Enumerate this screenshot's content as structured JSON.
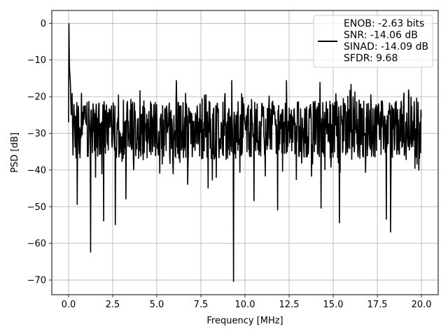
{
  "chart_data": {
    "type": "line",
    "title": "",
    "xlabel": "Frequency [MHz]",
    "ylabel": "PSD [dB]",
    "xlim": [
      -0.95,
      20.95
    ],
    "ylim": [
      -74,
      3.5
    ],
    "xticks": [
      0.0,
      2.5,
      5.0,
      7.5,
      10.0,
      12.5,
      15.0,
      17.5,
      20.0
    ],
    "xtick_labels": [
      "0.0",
      "2.5",
      "5.0",
      "7.5",
      "10.0",
      "12.5",
      "15.0",
      "17.5",
      "20.0"
    ],
    "yticks": [
      0,
      -10,
      -20,
      -30,
      -40,
      -50,
      -60,
      -70
    ],
    "ytick_labels": [
      "0",
      "−10",
      "−20",
      "−30",
      "−40",
      "−50",
      "−60",
      "−70"
    ],
    "grid": true,
    "legend_position": "top-right",
    "series_color": "#000000",
    "legend_entries": [
      "ENOB: -2.63 bits",
      "SNR: -14.06 dB",
      "SINAD: -14.09 dB",
      "SFDR: 9.68"
    ],
    "noise_floor": {
      "x_start": 0.35,
      "x_end": 20.0,
      "typical_max": -21,
      "typical_min": -37,
      "center": -28
    },
    "initial_peak": {
      "x": [
        0.0,
        0.02,
        0.05,
        0.1,
        0.15,
        0.2,
        0.25,
        0.3,
        0.35
      ],
      "y": [
        -27,
        0,
        -12,
        -16,
        -25,
        -19,
        -36,
        -22,
        -28
      ]
    },
    "notable_dips": [
      {
        "x": 0.5,
        "y": -49.5
      },
      {
        "x": 1.25,
        "y": -62.5
      },
      {
        "x": 2.0,
        "y": -54
      },
      {
        "x": 2.65,
        "y": -55
      },
      {
        "x": 3.25,
        "y": -48
      },
      {
        "x": 6.75,
        "y": -44
      },
      {
        "x": 7.9,
        "y": -45
      },
      {
        "x": 9.35,
        "y": -70.5
      },
      {
        "x": 10.5,
        "y": -48.5
      },
      {
        "x": 11.85,
        "y": -51
      },
      {
        "x": 14.3,
        "y": -50.5
      },
      {
        "x": 15.35,
        "y": -54.5
      },
      {
        "x": 18.0,
        "y": -53.5
      },
      {
        "x": 18.25,
        "y": -57
      }
    ],
    "notable_peaks": [
      {
        "x": 6.1,
        "y": -15.5
      },
      {
        "x": 9.25,
        "y": -15.5
      },
      {
        "x": 12.35,
        "y": -15.5
      },
      {
        "x": 14.25,
        "y": -16
      },
      {
        "x": 16.0,
        "y": -16.5
      }
    ]
  }
}
